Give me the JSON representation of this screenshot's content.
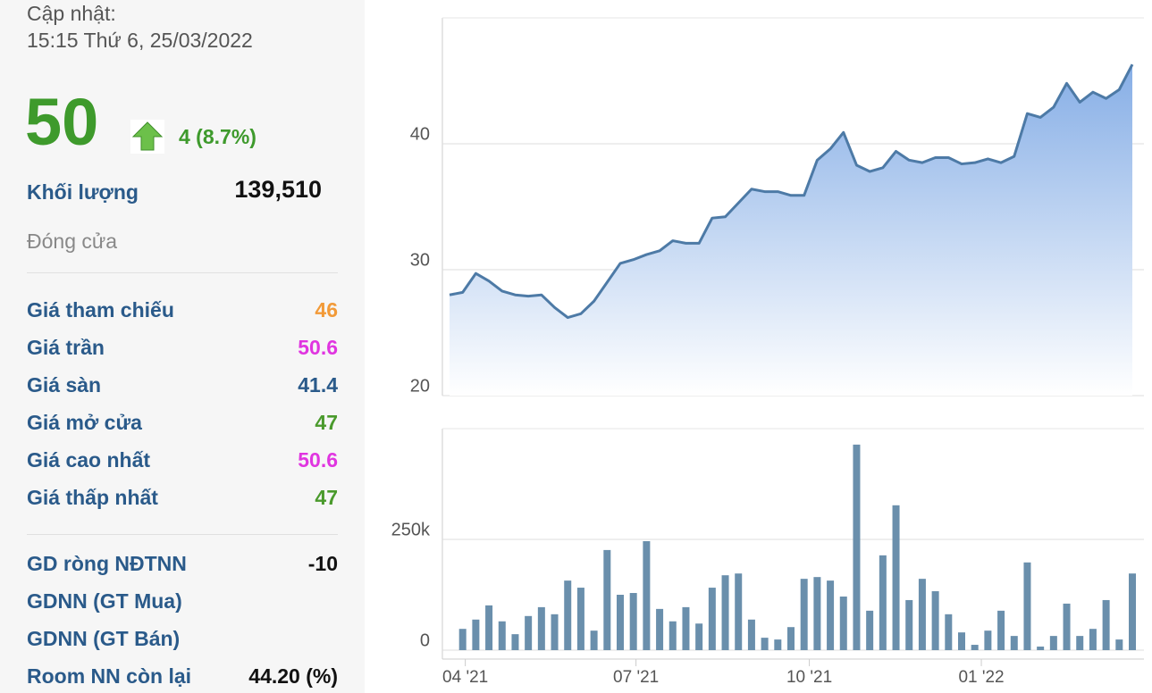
{
  "panel": {
    "update_label": "Cập nhật:",
    "update_time": "15:15 Thứ 6, 25/03/2022",
    "price": "50",
    "change": "4 (8.7%)",
    "volume_label": "Khối lượng",
    "volume": "139,510",
    "status": "Đóng cửa",
    "rows": [
      [
        "Giá tham chiếu",
        "46"
      ],
      [
        "Giá trần",
        "50.6"
      ],
      [
        "Giá sàn",
        "41.4"
      ],
      [
        "Giá mở cửa",
        "47"
      ],
      [
        "Giá cao nhất",
        "50.6"
      ],
      [
        "Giá thấp nhất",
        "47"
      ]
    ],
    "foreign_rows": [
      [
        "GD ròng NĐTNN",
        "-10"
      ],
      [
        "GDNN (GT Mua)"
      ],
      [
        "GDNN (GT Bán)"
      ],
      [
        "Room NN còn lại",
        "44.20 (%)"
      ]
    ]
  },
  "chart_data": [
    {
      "type": "area",
      "color": "#4d7aa6",
      "x": [
        0,
        1,
        2,
        3,
        4,
        5,
        6,
        7,
        8,
        9,
        10,
        11,
        12,
        13,
        14,
        15,
        16,
        17,
        18,
        19,
        20,
        21,
        22,
        23,
        24,
        25,
        26,
        27,
        28,
        29,
        30,
        31,
        32,
        33,
        34,
        35,
        36,
        37,
        38,
        39,
        40,
        41,
        42,
        43,
        44,
        45,
        46,
        47,
        48,
        49,
        50,
        51,
        52
      ],
      "values": [
        28.0,
        28.2,
        29.7,
        29.1,
        28.3,
        28.0,
        27.9,
        28.0,
        27.0,
        26.2,
        26.5,
        27.5,
        29.0,
        30.5,
        30.8,
        31.2,
        31.5,
        32.3,
        32.1,
        32.1,
        34.1,
        34.2,
        35.3,
        36.4,
        36.2,
        36.2,
        35.9,
        35.9,
        38.7,
        39.6,
        40.9,
        38.3,
        37.8,
        38.1,
        39.4,
        38.7,
        38.5,
        38.9,
        38.9,
        38.4,
        38.5,
        38.8,
        38.5,
        39.0,
        42.4,
        42.1,
        42.9,
        44.8,
        43.3,
        44.1,
        43.6,
        44.3,
        46.3
      ],
      "xlim": [
        0,
        52
      ],
      "ylim": [
        20,
        50
      ],
      "yticks": [
        20,
        30,
        40
      ],
      "grid": true
    },
    {
      "type": "bar",
      "color": "#6a8fac",
      "x": [
        1,
        2,
        3,
        4,
        5,
        6,
        7,
        8,
        9,
        10,
        11,
        12,
        13,
        14,
        15,
        16,
        17,
        18,
        19,
        20,
        21,
        22,
        23,
        24,
        25,
        26,
        27,
        28,
        29,
        30,
        31,
        32,
        33,
        34,
        35,
        36,
        37,
        38,
        39,
        40,
        41,
        42,
        43,
        44,
        45,
        46,
        47,
        48,
        49,
        50,
        51,
        52
      ],
      "values": [
        48000,
        69000,
        101000,
        65000,
        36000,
        77000,
        97000,
        81000,
        157000,
        141000,
        44000,
        226000,
        125000,
        129000,
        246000,
        93000,
        65000,
        97000,
        60000,
        141000,
        169000,
        173000,
        69000,
        28000,
        24000,
        52000,
        161000,
        165000,
        157000,
        121000,
        464000,
        89000,
        214000,
        327000,
        113000,
        161000,
        133000,
        81000,
        40000,
        12000,
        44000,
        89000,
        32000,
        198000,
        8000,
        32000,
        105000,
        32000,
        48000,
        113000,
        24000,
        173000
      ],
      "xlim": [
        0,
        52
      ],
      "ylim": [
        0,
        500000
      ],
      "yticks": [
        0,
        {
          "value": 250000,
          "label": "250k"
        }
      ],
      "xticks": [
        {
          "value": 1.2,
          "label": "04 '21"
        },
        {
          "value": 14.2,
          "label": "07 '21"
        },
        {
          "value": 27.4,
          "label": "10 '21"
        },
        {
          "value": 40.5,
          "label": "01 '22"
        }
      ],
      "grid": true
    }
  ]
}
